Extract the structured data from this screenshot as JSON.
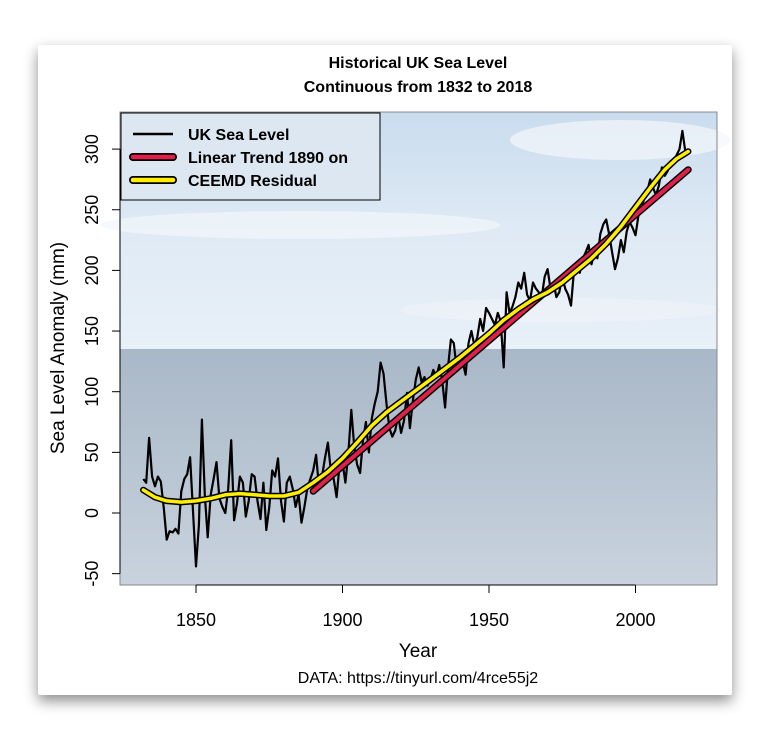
{
  "chart_data": {
    "type": "line",
    "title": "Historical UK Sea Level",
    "subtitle": "Continuous from 1832 to 2018",
    "xlabel": "Year",
    "ylabel": "Sea Level Anomaly (mm)",
    "caption": "DATA: https://tinyurl.com/4rce55j2",
    "xlim": [
      1824,
      2028
    ],
    "ylim": [
      -59,
      331
    ],
    "xticks": [
      1850,
      1900,
      1950,
      2000
    ],
    "yticks": [
      -50,
      0,
      50,
      100,
      150,
      200,
      250,
      300
    ],
    "grid": false,
    "legend_position": "top-left",
    "background": "sky and sea photograph",
    "series": [
      {
        "name": "UK Sea Level",
        "color": "#000000",
        "x_start": 1832,
        "values": [
          28,
          25,
          62,
          30,
          22,
          30,
          26,
          4,
          -22,
          -15,
          -16,
          -13,
          -17,
          18,
          28,
          32,
          46,
          0,
          -44,
          -10,
          77,
          15,
          -20,
          15,
          28,
          42,
          12,
          5,
          0,
          20,
          60,
          -6,
          8,
          30,
          25,
          -3,
          10,
          32,
          30,
          10,
          -5,
          25,
          -14,
          5,
          35,
          30,
          45,
          10,
          -7,
          25,
          30,
          20,
          5,
          15,
          -8,
          5,
          20,
          28,
          35,
          48,
          20,
          30,
          45,
          58,
          35,
          28,
          13,
          40,
          42,
          25,
          50,
          85,
          55,
          40,
          33,
          60,
          75,
          50,
          78,
          90,
          100,
          124,
          115,
          90,
          70,
          63,
          68,
          80,
          66,
          76,
          99,
          70,
          92,
          110,
          120,
          108,
          112,
          105,
          110,
          118,
          112,
          122,
          110,
          87,
          120,
          143,
          140,
          118,
          126,
          125,
          114,
          140,
          150,
          138,
          145,
          160,
          150,
          169,
          165,
          160,
          155,
          165,
          158,
          120,
          182,
          165,
          170,
          178,
          190,
          185,
          198,
          180,
          175,
          190,
          185,
          182,
          178,
          195,
          201,
          185,
          190,
          178,
          182,
          195,
          185,
          180,
          171,
          200,
          205,
          198,
          210,
          215,
          221,
          205,
          215,
          210,
          230,
          238,
          242,
          230,
          215,
          201,
          210,
          225,
          215,
          232,
          240,
          235,
          229,
          245,
          250,
          260,
          265,
          275,
          268,
          262,
          270,
          285,
          278,
          282,
          290,
          288,
          295,
          300,
          315,
          298,
          300
        ]
      },
      {
        "name": "Linear Trend 1890 on",
        "color": "#e0204a",
        "x": [
          1890,
          2018
        ],
        "values": [
          18,
          283
        ]
      },
      {
        "name": "CEEMD Residual",
        "color": "#ffee00",
        "x": [
          1832,
          1836,
          1840,
          1845,
          1850,
          1855,
          1860,
          1865,
          1870,
          1875,
          1880,
          1885,
          1890,
          1895,
          1900,
          1905,
          1910,
          1915,
          1920,
          1925,
          1930,
          1935,
          1940,
          1945,
          1950,
          1955,
          1960,
          1965,
          1970,
          1975,
          1980,
          1985,
          1990,
          1995,
          2000,
          2005,
          2010,
          2014,
          2018
        ],
        "values": [
          19,
          13,
          10,
          9,
          10,
          12,
          15,
          16,
          15,
          14,
          14,
          17,
          25,
          34,
          45,
          58,
          72,
          83,
          92,
          101,
          110,
          119,
          128,
          138,
          148,
          159,
          168,
          176,
          182,
          190,
          200,
          210,
          222,
          236,
          252,
          268,
          283,
          292,
          298
        ]
      }
    ]
  }
}
